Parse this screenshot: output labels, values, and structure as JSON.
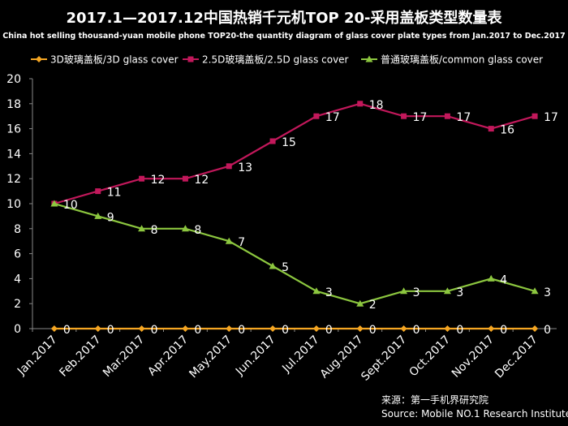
{
  "chart_data": {
    "type": "line",
    "title": "2017.1—2017.12中国热销千元机TOP 20-采用盖板类型数量表",
    "subtitle": "China hot selling thousand-yuan mobile phone TOP20-the quantity diagram of glass cover plate types from Jan.2017 to Dec.2017",
    "categories": [
      "Jan.2017",
      "Feb.2017",
      "Mar.2017",
      "Apr.2017",
      "May.2017",
      "Jun.2017",
      "Jul.2017",
      "Aug.2017",
      "Sept.2017",
      "Oct.2017",
      "Nov.2017",
      "Dec.2017"
    ],
    "ylim": [
      0,
      20
    ],
    "yticks": [
      0,
      2,
      4,
      6,
      8,
      10,
      12,
      14,
      16,
      18,
      20
    ],
    "legend_position": "top",
    "grid": false,
    "series": [
      {
        "name": "3D玻璃盖板/3D glass cover",
        "color": "#F5A623",
        "marker": "diamond",
        "values": [
          0,
          0,
          0,
          0,
          0,
          0,
          0,
          0,
          0,
          0,
          0,
          0
        ]
      },
      {
        "name": "2.5D玻璃盖板/2.5D glass cover",
        "color": "#C2185B",
        "marker": "square",
        "values": [
          10,
          11,
          12,
          12,
          13,
          15,
          17,
          18,
          17,
          17,
          16,
          17
        ]
      },
      {
        "name": "普通玻璃盖板/common glass cover",
        "color": "#8CC63F",
        "marker": "triangle",
        "values": [
          10,
          9,
          8,
          8,
          7,
          5,
          3,
          2,
          3,
          3,
          4,
          3
        ]
      }
    ],
    "data_labels": [
      {
        "series": 0,
        "values": [
          0,
          0,
          0,
          0,
          0,
          0,
          0,
          0,
          0,
          0,
          0,
          0
        ]
      },
      {
        "series": 1,
        "values": [
          null,
          11,
          12,
          12,
          13,
          15,
          17,
          18,
          17,
          17,
          16,
          17
        ]
      },
      {
        "series": 2,
        "values": [
          10,
          9,
          8,
          8,
          7,
          5,
          3,
          2,
          3,
          3,
          4,
          3
        ]
      }
    ]
  },
  "source": {
    "line1": "来源：第一手机界研究院",
    "line2": "Source: Mobile NO.1 Research Institute"
  }
}
